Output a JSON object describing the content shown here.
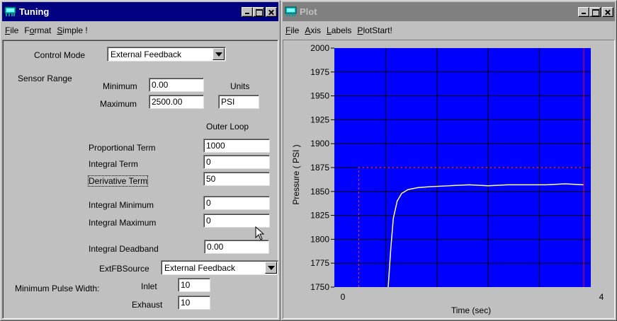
{
  "tuning": {
    "title": "Tuning",
    "menu": [
      {
        "pre": "",
        "u": "F",
        "post": "ile"
      },
      {
        "pre": "F",
        "u": "o",
        "post": "rmat"
      },
      {
        "pre": "",
        "u": "S",
        "post": "imple !"
      }
    ],
    "control_mode": {
      "label": "Control Mode",
      "value": "External Feedback"
    },
    "sensor_range": {
      "label": "Sensor Range",
      "minimum_label": "Minimum",
      "minimum_value": "0.00",
      "maximum_label": "Maximum",
      "maximum_value": "2500.00",
      "units_label": "Units",
      "units_value": "PSI"
    },
    "outer_loop_label": "Outer Loop",
    "proportional": {
      "label": "Proportional Term",
      "value": "1000"
    },
    "integral": {
      "label": "Integral Term",
      "value": "0"
    },
    "derivative": {
      "label": "Derivative Term",
      "value": "50"
    },
    "integral_min": {
      "label": "Integral Minimum",
      "value": "0"
    },
    "integral_max": {
      "label": "Integral Maximum",
      "value": "0"
    },
    "integral_deadband": {
      "label": "Integral Deadband",
      "value": "0.00"
    },
    "extfb_source": {
      "label": "ExtFBSource",
      "value": "External Feedback"
    },
    "min_pulse": {
      "label": "Minimum Pulse Width:",
      "inlet_label": "Inlet",
      "inlet_value": "10",
      "exhaust_label": "Exhaust",
      "exhaust_value": "10"
    }
  },
  "plot": {
    "title": "Plot",
    "menu": [
      {
        "pre": "",
        "u": "F",
        "post": "ile"
      },
      {
        "pre": "",
        "u": "A",
        "post": "xis"
      },
      {
        "pre": "",
        "u": "L",
        "post": "abels"
      },
      {
        "pre": "",
        "u": "P",
        "post": "lotStart!"
      }
    ]
  },
  "colors": {
    "plot_bg": "#0000ff",
    "grid": "#000000",
    "trace": "#ffff99",
    "setpoint": "#ff3333",
    "marker": "#ff0000"
  },
  "chart_data": {
    "type": "line",
    "xlabel": "Time (sec)",
    "ylabel": "Pressure ( PSI )",
    "xlim": [
      0,
      4
    ],
    "ylim": [
      1750,
      2000
    ],
    "x_ticks": [
      "0",
      "4"
    ],
    "y_ticks": [
      "2000",
      "1975",
      "1950",
      "1925",
      "1900",
      "1875",
      "1850",
      "1825",
      "1800",
      "1775",
      "1750"
    ],
    "grid": true,
    "series": [
      {
        "role": "pressure",
        "x": [
          0.84,
          0.88,
          0.92,
          0.98,
          1.05,
          1.15,
          1.3,
          1.5,
          1.8,
          2.1,
          2.4,
          2.7,
          3.0,
          3.3,
          3.6,
          3.89
        ],
        "y": [
          1750,
          1790,
          1822,
          1840,
          1848,
          1852,
          1854,
          1855,
          1856,
          1857,
          1856,
          1857,
          1857,
          1857,
          1858,
          1857
        ]
      },
      {
        "role": "setpoint",
        "x": [
          0.38,
          0.38,
          3.89
        ],
        "y": [
          1750,
          1875,
          1875
        ]
      }
    ],
    "marker_x": 3.89
  }
}
